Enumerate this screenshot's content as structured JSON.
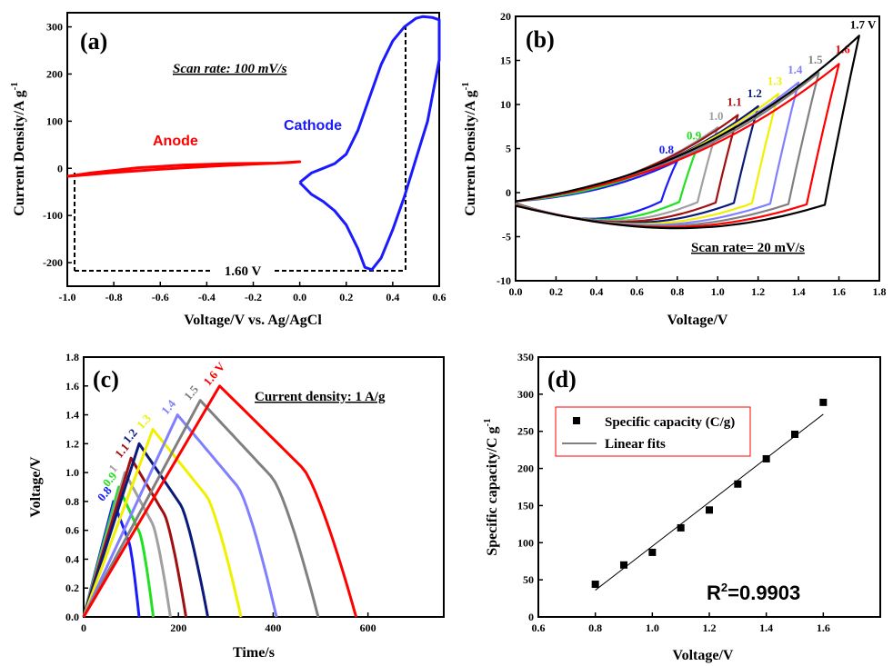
{
  "colors": {
    "blue": "#1a1aff",
    "green": "#22e022",
    "gray": "#a0a0a0",
    "darkred": "#a01010",
    "navy": "#0a1a7a",
    "yellow": "#f0f000",
    "lightblue": "#8080ff",
    "darkgray": "#808080",
    "red": "#ff0000",
    "black": "#000000"
  },
  "chart_data": [
    {
      "type": "line",
      "panel_label": "(a)",
      "xlabel": "Voltage/V vs. Ag/AgCl",
      "ylabel": "Current Density/A g",
      "ylabel_sup": "-1",
      "xlim": [
        -1.0,
        0.6
      ],
      "ylim": [
        -250,
        330
      ],
      "xticks": [
        -1.0,
        -0.8,
        -0.6,
        -0.4,
        -0.2,
        0.0,
        0.2,
        0.4,
        0.6
      ],
      "xtick_labels": [
        "-1.0",
        "-0.8",
        "-0.6",
        "-0.4",
        "-0.2",
        "0.0",
        "0.2",
        "0.4",
        "0.6"
      ],
      "yticks": [
        -200,
        -100,
        0,
        100,
        200,
        300
      ],
      "ytick_labels": [
        "-200",
        "-100",
        "0",
        "100",
        "200",
        "300"
      ],
      "annotations": {
        "scan_rate": "Scan rate: 100 mV/s",
        "window": "1.60 V",
        "anode": "Anode",
        "cathode": "Cathode"
      },
      "series": [
        {
          "name": "Anode",
          "color": "#ff0000",
          "x": [
            -1.0,
            -0.8,
            -0.6,
            -0.4,
            -0.2,
            -0.05,
            0.0,
            -0.1,
            -0.3,
            -0.5,
            -0.7,
            -0.9,
            -1.0
          ],
          "y": [
            -17,
            -9,
            -2,
            4,
            9,
            12,
            14,
            11,
            10,
            7,
            1,
            -10,
            -17
          ]
        },
        {
          "name": "Cathode",
          "color": "#1a1aff",
          "x": [
            0.0,
            0.05,
            0.1,
            0.15,
            0.2,
            0.25,
            0.3,
            0.35,
            0.4,
            0.45,
            0.5,
            0.53,
            0.57,
            0.6,
            0.6,
            0.55,
            0.5,
            0.45,
            0.4,
            0.35,
            0.31,
            0.28,
            0.25,
            0.2,
            0.15,
            0.1,
            0.05,
            0.0
          ],
          "y": [
            -30,
            -10,
            0,
            10,
            30,
            80,
            150,
            220,
            270,
            300,
            318,
            322,
            320,
            315,
            230,
            100,
            20,
            -60,
            -130,
            -190,
            -215,
            -210,
            -170,
            -120,
            -90,
            -70,
            -55,
            -30
          ]
        }
      ]
    },
    {
      "type": "line",
      "panel_label": "(b)",
      "xlabel": "Voltage/V",
      "ylabel": "Current Density/A g",
      "ylabel_sup": "-1",
      "xlim": [
        0.0,
        1.8
      ],
      "ylim": [
        -10,
        20
      ],
      "xticks": [
        0.0,
        0.2,
        0.4,
        0.6,
        0.8,
        1.0,
        1.2,
        1.4,
        1.6,
        1.8
      ],
      "xtick_labels": [
        "0.0",
        "0.2",
        "0.4",
        "0.6",
        "0.8",
        "1.0",
        "1.2",
        "1.4",
        "1.6",
        "1.8"
      ],
      "yticks": [
        -10,
        -5,
        0,
        5,
        10,
        15,
        20
      ],
      "ytick_labels": [
        "-10",
        "-5",
        "0",
        "5",
        "10",
        "15",
        "20"
      ],
      "annotations": {
        "scan_rate": "Scan rate= 20 mV/s"
      },
      "series": [
        {
          "name": "0.8",
          "color": "#1a1aff",
          "vmax": 0.8,
          "ipeak": 3.6
        },
        {
          "name": "0.9",
          "color": "#22e022",
          "vmax": 0.9,
          "ipeak": 5.2
        },
        {
          "name": "1.0",
          "color": "#a0a0a0",
          "vmax": 1.0,
          "ipeak": 7.4
        },
        {
          "name": "1.1",
          "color": "#a01010",
          "vmax": 1.1,
          "ipeak": 8.8
        },
        {
          "name": "1.2",
          "color": "#0a1a7a",
          "vmax": 1.2,
          "ipeak": 9.8
        },
        {
          "name": "1.3",
          "color": "#f0f000",
          "vmax": 1.3,
          "ipeak": 11.2
        },
        {
          "name": "1.4",
          "color": "#8080ff",
          "vmax": 1.4,
          "ipeak": 12.5
        },
        {
          "name": "1.5",
          "color": "#808080",
          "vmax": 1.5,
          "ipeak": 13.6
        },
        {
          "name": "1.6",
          "color": "#ff0000",
          "vmax": 1.6,
          "ipeak": 14.6
        },
        {
          "name": "1.7 V",
          "color": "#000000",
          "vmax": 1.7,
          "ipeak": 17.8
        }
      ]
    },
    {
      "type": "line",
      "panel_label": "(c)",
      "xlabel": "Time/s",
      "ylabel": "Voltage/V",
      "xlim": [
        0,
        760
      ],
      "ylim": [
        0.0,
        1.8
      ],
      "xticks": [
        0,
        200,
        400,
        600
      ],
      "xtick_labels": [
        "0",
        "200",
        "400",
        "600"
      ],
      "yticks": [
        0.0,
        0.2,
        0.4,
        0.6,
        0.8,
        1.0,
        1.2,
        1.4,
        1.6,
        1.8
      ],
      "ytick_labels": [
        "0.0",
        "0.2",
        "0.4",
        "0.6",
        "0.8",
        "1.0",
        "1.2",
        "1.4",
        "1.6",
        "1.8"
      ],
      "annotations": {
        "current_density": "Current density: 1 A/g"
      },
      "series": [
        {
          "name": "0.8",
          "color": "#1a1aff",
          "vmax": 0.8,
          "t_peak": 63,
          "t_end": 117
        },
        {
          "name": "0.9",
          "color": "#22e022",
          "vmax": 0.9,
          "t_peak": 74,
          "t_end": 147
        },
        {
          "name": "1",
          "color": "#a0a0a0",
          "vmax": 1.0,
          "t_peak": 87,
          "t_end": 183
        },
        {
          "name": "1.1",
          "color": "#a01010",
          "vmax": 1.1,
          "t_peak": 100,
          "t_end": 216
        },
        {
          "name": "1.2",
          "color": "#0a1a7a",
          "vmax": 1.2,
          "t_peak": 117,
          "t_end": 262
        },
        {
          "name": "1.3",
          "color": "#f0f000",
          "vmax": 1.3,
          "t_peak": 146,
          "t_end": 332
        },
        {
          "name": "1.4",
          "color": "#8080ff",
          "vmax": 1.4,
          "t_peak": 198,
          "t_end": 407
        },
        {
          "name": "1.5",
          "color": "#808080",
          "vmax": 1.5,
          "t_peak": 246,
          "t_end": 495
        },
        {
          "name": "1.6 V",
          "color": "#ff0000",
          "vmax": 1.6,
          "t_peak": 287,
          "t_end": 575
        }
      ]
    },
    {
      "type": "scatter",
      "panel_label": "(d)",
      "xlabel": "Voltage/V",
      "ylabel": "Specific capacity/C g",
      "ylabel_sup": "-1",
      "xlim": [
        0.6,
        1.8
      ],
      "ylim": [
        0,
        350
      ],
      "xticks": [
        0.6,
        0.8,
        1.0,
        1.2,
        1.4,
        1.6
      ],
      "xtick_labels": [
        "0.6",
        "0.8",
        "1.0",
        "1.2",
        "1.4",
        "1.6"
      ],
      "yticks": [
        0,
        50,
        100,
        150,
        200,
        250,
        300,
        350
      ],
      "ytick_labels": [
        "0",
        "50",
        "100",
        "150",
        "200",
        "250",
        "300",
        "350"
      ],
      "legend": {
        "position": "top-left",
        "items": [
          "Specific capacity (C/g)",
          "Linear fits"
        ]
      },
      "annotations": {
        "r2_base": "R",
        "r2_sup": "2",
        "r2_value": "=0.9903"
      },
      "series": [
        {
          "name": "Specific capacity (C/g)",
          "x": [
            0.8,
            0.9,
            1.0,
            1.1,
            1.2,
            1.3,
            1.4,
            1.5,
            1.6
          ],
          "y": [
            44,
            70,
            87,
            120,
            144,
            179,
            213,
            246,
            289
          ]
        },
        {
          "name": "Linear fits",
          "x": [
            0.8,
            1.6
          ],
          "y": [
            36,
            273
          ]
        }
      ]
    }
  ]
}
